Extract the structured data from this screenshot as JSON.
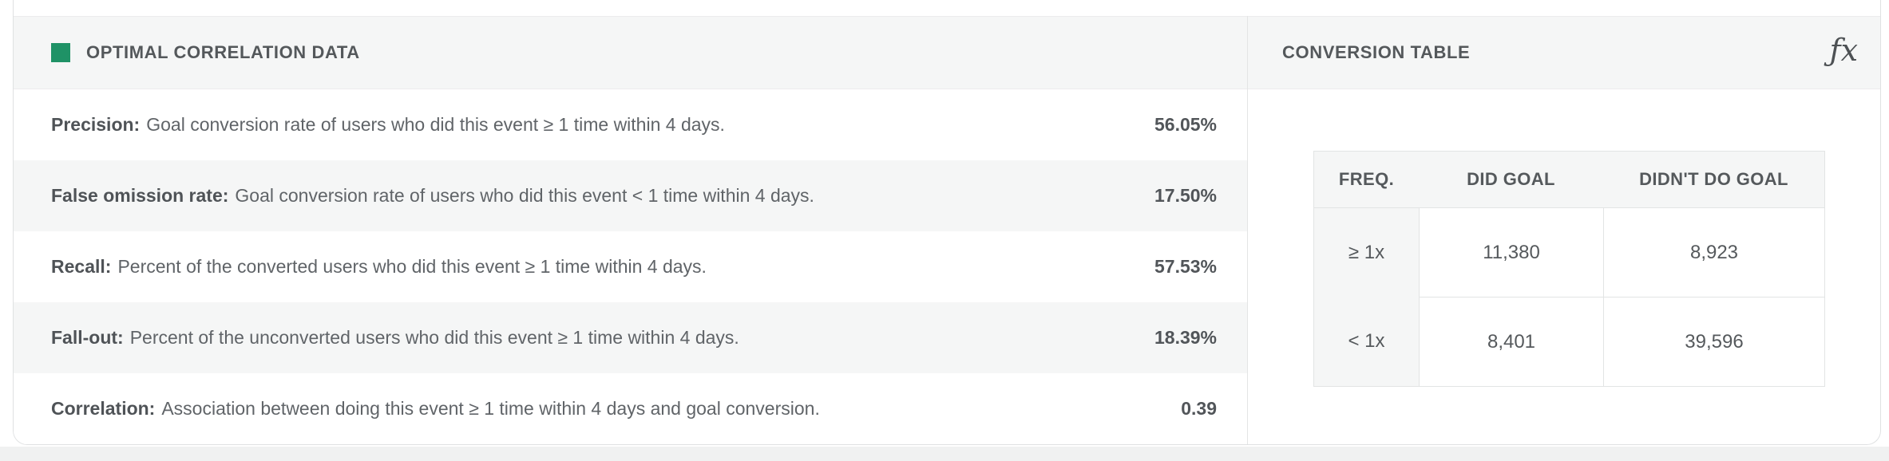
{
  "colors": {
    "accent_green": "#1F9266",
    "panel_header_bg": "#F5F6F6",
    "border": "#E2E4E4",
    "text_primary": "#53575B",
    "text_secondary": "#606468",
    "page_strip": "#F0F1F1"
  },
  "left_panel": {
    "title": "OPTIMAL CORRELATION DATA",
    "rows": [
      {
        "label": "Precision:",
        "description": "Goal conversion rate of users who did this event ≥ 1 time within 4 days.",
        "value": "56.05%"
      },
      {
        "label": "False omission rate:",
        "description": "Goal conversion rate of users who did this event < 1 time within 4 days.",
        "value": "17.50%"
      },
      {
        "label": "Recall:",
        "description": "Percent of the converted users who did this event ≥ 1 time within 4 days.",
        "value": "57.53%"
      },
      {
        "label": "Fall-out:",
        "description": "Percent of the unconverted users who did this event ≥ 1 time within 4 days.",
        "value": "18.39%"
      },
      {
        "label": "Correlation:",
        "description": "Association between doing this event ≥ 1 time within 4 days and goal conversion.",
        "value": "0.39"
      }
    ]
  },
  "right_panel": {
    "title": "CONVERSION TABLE",
    "fx_icon_glyph": "ƒx",
    "table": {
      "headers": [
        "FREQ.",
        "DID GOAL",
        "DIDN'T DO GOAL"
      ],
      "rows": [
        {
          "freq": "≥ 1x",
          "did_goal": "11,380",
          "didnt_do_goal": "8,923"
        },
        {
          "freq": "< 1x",
          "did_goal": "8,401",
          "didnt_do_goal": "39,596"
        }
      ]
    }
  }
}
